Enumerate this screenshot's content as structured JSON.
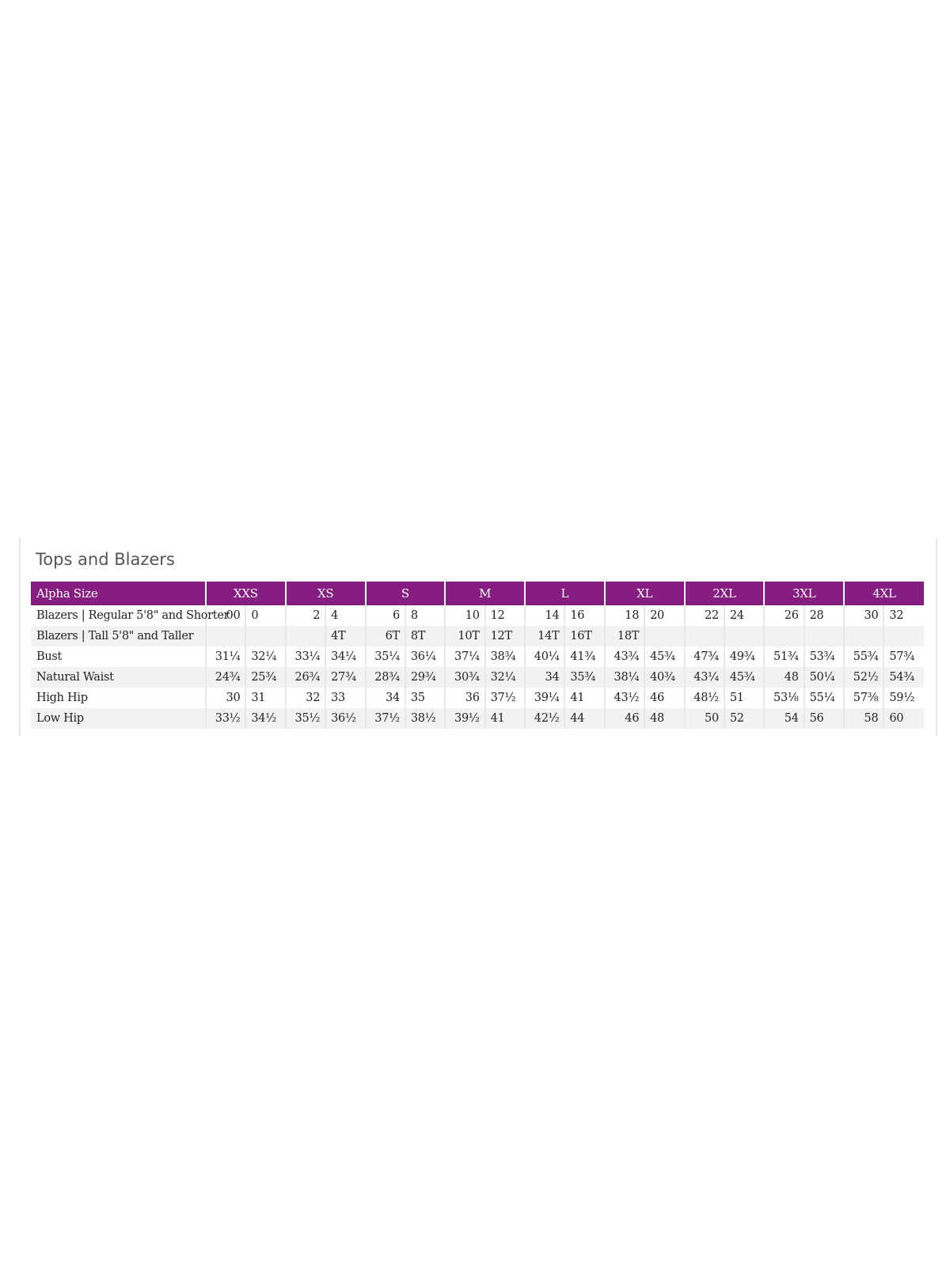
{
  "title": "Tops and Blazers",
  "header": {
    "label": "Alpha Size",
    "sizes": [
      "XXS",
      "XS",
      "S",
      "M",
      "L",
      "XL",
      "2XL",
      "3XL",
      "4XL"
    ]
  },
  "rows": [
    {
      "label": "Blazers | Regular 5'8\" and Shorter",
      "values": [
        "00",
        "0",
        "2",
        "4",
        "6",
        "8",
        "10",
        "12",
        "14",
        "16",
        "18",
        "20",
        "22",
        "24",
        "26",
        "28",
        "30",
        "32"
      ]
    },
    {
      "label": "Blazers | Tall 5'8\" and Taller",
      "values": [
        "",
        "",
        "",
        "4T",
        "6T",
        "8T",
        "10T",
        "12T",
        "14T",
        "16T",
        "18T",
        "",
        "",
        "",
        "",
        "",
        "",
        ""
      ]
    },
    {
      "label": "Bust",
      "values": [
        "31¼",
        "32¼",
        "33¼",
        "34¼",
        "35¼",
        "36¼",
        "37¼",
        "38¾",
        "40¼",
        "41¾",
        "43¾",
        "45¾",
        "47¾",
        "49¾",
        "51¾",
        "53¾",
        "55¾",
        "57¾"
      ]
    },
    {
      "label": "Natural Waist",
      "values": [
        "24¾",
        "25¾",
        "26¾",
        "27¾",
        "28¾",
        "29¾",
        "30¾",
        "32¼",
        "34",
        "35¾",
        "38¼",
        "40¾",
        "43¼",
        "45¾",
        "48",
        "50¼",
        "52½",
        "54¾"
      ]
    },
    {
      "label": "High Hip",
      "values": [
        "30",
        "31",
        "32",
        "33",
        "34",
        "35",
        "36",
        "37½",
        "39¼",
        "41",
        "43½",
        "46",
        "48½",
        "51",
        "53⅛",
        "55¼",
        "57⅜",
        "59½"
      ]
    },
    {
      "label": "Low Hip",
      "values": [
        "33½",
        "34½",
        "35½",
        "36½",
        "37½",
        "38½",
        "39½",
        "41",
        "42½",
        "44",
        "46",
        "48",
        "50",
        "52",
        "54",
        "56",
        "58",
        "60"
      ]
    }
  ],
  "colors": {
    "header_bg": "#861d80",
    "header_text": "#ffffff",
    "alt_row": "#f3f2f1"
  }
}
